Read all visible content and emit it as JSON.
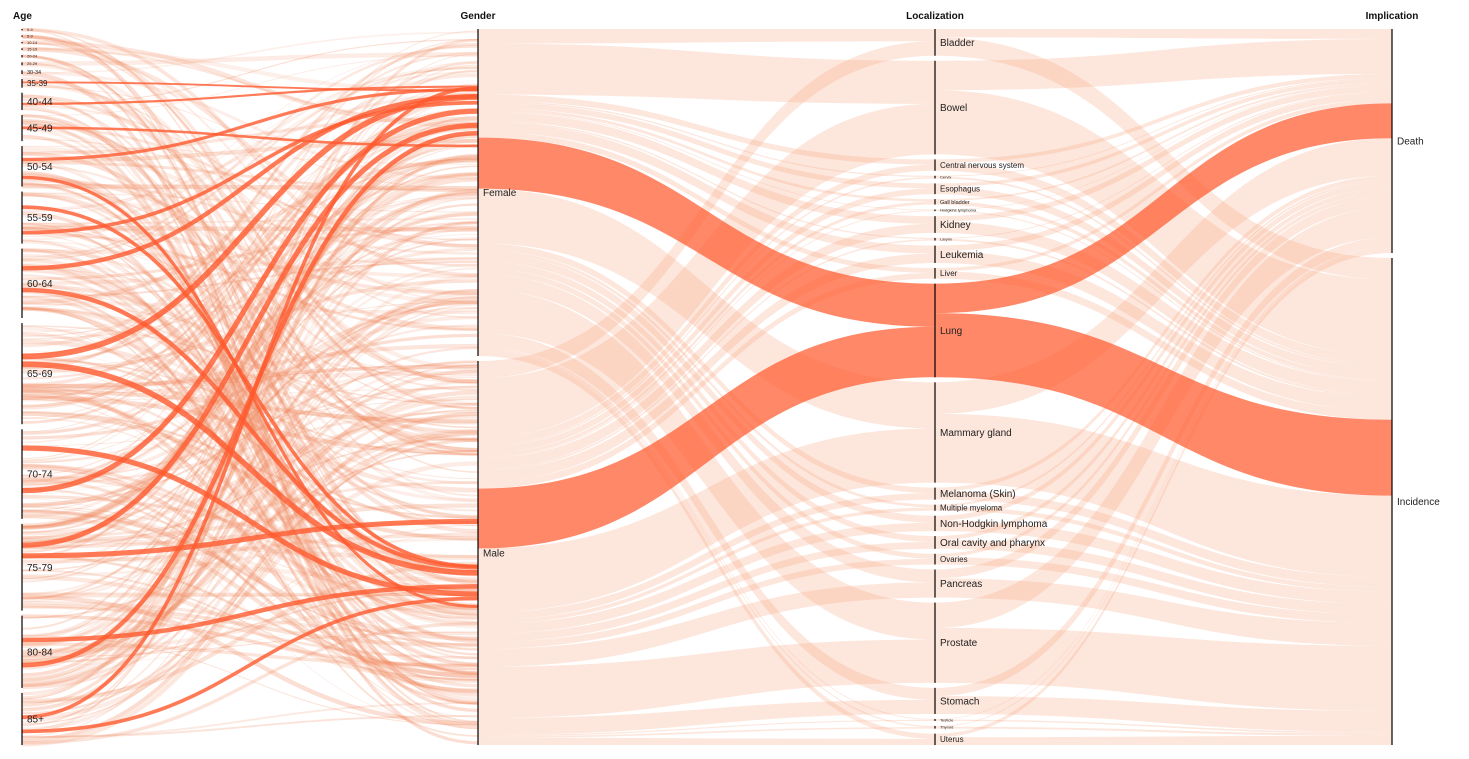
{
  "chart_data": {
    "type": "parallel-sets",
    "dimensions": [
      {
        "title": "Age",
        "categories": [
          {
            "label": "0-4",
            "value": 0.5
          },
          {
            "label": "5-9",
            "value": 0.5
          },
          {
            "label": "10-14",
            "value": 0.5
          },
          {
            "label": "15-19",
            "value": 0.6
          },
          {
            "label": "20-24",
            "value": 0.8
          },
          {
            "label": "25-29",
            "value": 1.0
          },
          {
            "label": "30-34",
            "value": 1.3
          },
          {
            "label": "35-39",
            "value": 3
          },
          {
            "label": "40-44",
            "value": 6
          },
          {
            "label": "45-49",
            "value": 9
          },
          {
            "label": "50-54",
            "value": 14
          },
          {
            "label": "55-59",
            "value": 18
          },
          {
            "label": "60-64",
            "value": 24
          },
          {
            "label": "65-69",
            "value": 35
          },
          {
            "label": "70-74",
            "value": 31
          },
          {
            "label": "75-79",
            "value": 30
          },
          {
            "label": "80-84",
            "value": 25
          },
          {
            "label": "85+",
            "value": 18
          }
        ]
      },
      {
        "title": "Gender",
        "categories": [
          {
            "label": "Female",
            "value": 46
          },
          {
            "label": "Male",
            "value": 54
          }
        ]
      },
      {
        "title": "Localization",
        "categories": [
          {
            "label": "Bladder",
            "value": 4.0
          },
          {
            "label": "Bowel",
            "value": 14.0
          },
          {
            "label": "Central nervous system",
            "value": 1.7
          },
          {
            "label": "Cervix",
            "value": 0.4
          },
          {
            "label": "Esophagus",
            "value": 1.6
          },
          {
            "label": "Gall bladder",
            "value": 0.8
          },
          {
            "label": "Hodgkins lymphoma",
            "value": 0.25
          },
          {
            "label": "Kidney",
            "value": 2.5
          },
          {
            "label": "Larynx",
            "value": 0.4
          },
          {
            "label": "Leukemia",
            "value": 2.6
          },
          {
            "label": "Liver",
            "value": 1.6
          },
          {
            "label": "Lung",
            "value": 14.0
          },
          {
            "label": "Mammary gland",
            "value": 15.0
          },
          {
            "label": "Melanoma (Skin)",
            "value": 1.8
          },
          {
            "label": "Multiple myeloma",
            "value": 0.9
          },
          {
            "label": "Non-Hodgkin lymphoma",
            "value": 2.3
          },
          {
            "label": "Oral cavity and pharynx",
            "value": 1.9
          },
          {
            "label": "Ovaries",
            "value": 1.6
          },
          {
            "label": "Pancreas",
            "value": 4.2
          },
          {
            "label": "Prostate",
            "value": 12.0
          },
          {
            "label": "Stomach",
            "value": 3.9
          },
          {
            "label": "Testicle",
            "value": 0.3
          },
          {
            "label": "Thyroid",
            "value": 0.4
          },
          {
            "label": "Uterus",
            "value": 1.7
          }
        ]
      },
      {
        "title": "Implication",
        "categories": [
          {
            "label": "Death",
            "value": 31.5
          },
          {
            "label": "Incidence",
            "value": 68.5
          }
        ]
      }
    ],
    "highlighted": {
      "dimension": "Localization",
      "category": "Lung"
    },
    "colors": {
      "flow": "#f8a780",
      "highlight": "#ff5a2e",
      "axis": "#000000"
    }
  }
}
